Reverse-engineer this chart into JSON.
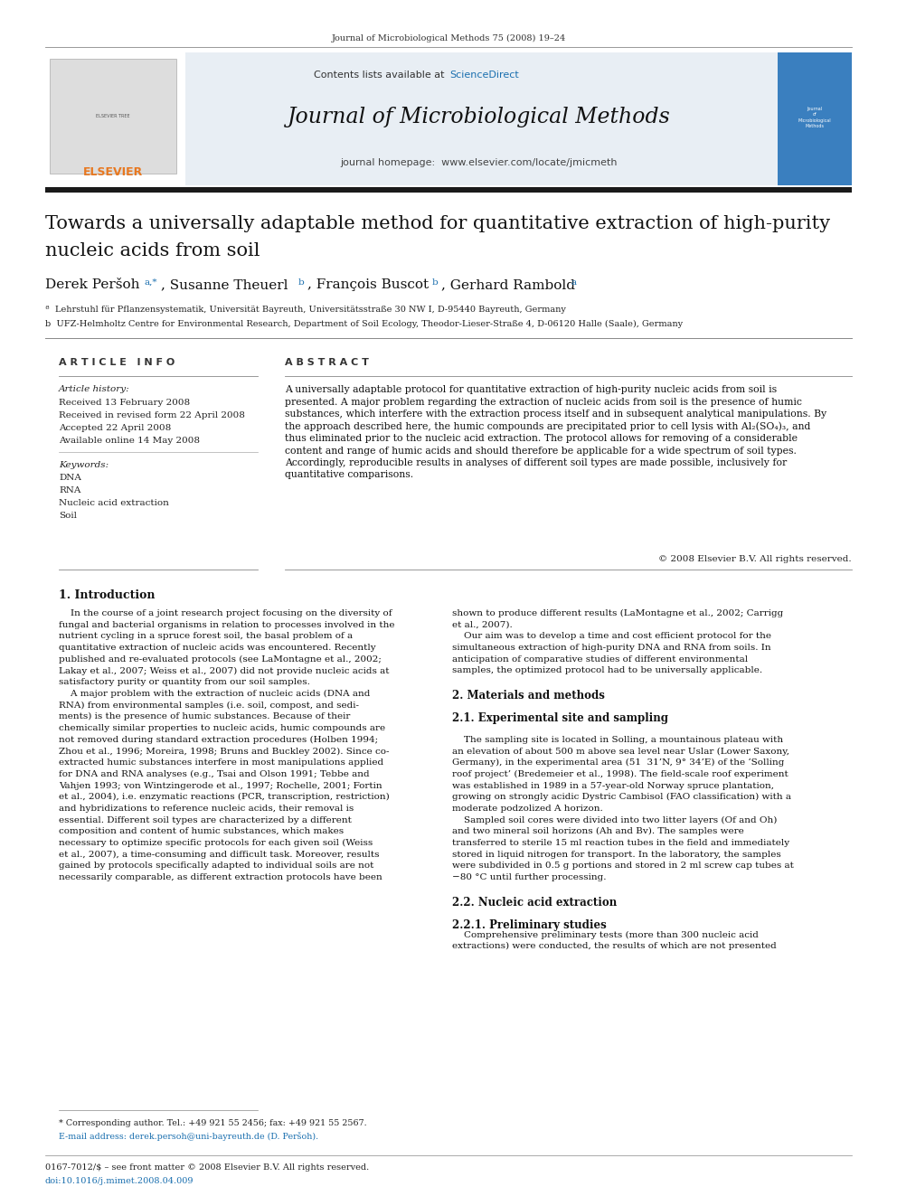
{
  "page_width": 9.92,
  "page_height": 13.23,
  "bg_color": "#ffffff",
  "top_journal_cite": "Journal of Microbiological Methods 75 (2008) 19–24",
  "header_bg": "#e8eef4",
  "contents_text": "Contents lists available at ",
  "sciencedirect_text": "ScienceDirect",
  "sciencedirect_color": "#1a6faf",
  "journal_title": "Journal of Microbiological Methods",
  "journal_homepage": "journal homepage:  www.elsevier.com/locate/jmicmeth",
  "thick_bar_color": "#1a1a1a",
  "article_title_line1": "Towards a universally adaptable method for quantitative extraction of high-purity",
  "article_title_line2": "nucleic acids from soil",
  "affil_a": "ª  Lehrstuhl für Pflanzensystematik, Universität Bayreuth, Universitätsstraße 30 NW I, D-95440 Bayreuth, Germany",
  "affil_b": "b  UFZ-Helmholtz Centre for Environmental Research, Department of Soil Ecology, Theodor-Lieser-Straße 4, D-06120 Halle (Saale), Germany",
  "article_info_header": "A R T I C L E   I N F O",
  "abstract_header": "A B S T R A C T",
  "article_history_label": "Article history:",
  "received": "Received 13 February 2008",
  "received_revised": "Received in revised form 22 April 2008",
  "accepted": "Accepted 22 April 2008",
  "available": "Available online 14 May 2008",
  "keywords_label": "Keywords:",
  "keywords": [
    "DNA",
    "RNA",
    "Nucleic acid extraction",
    "Soil"
  ],
  "abstract_lines": [
    "A universally adaptable protocol for quantitative extraction of high-purity nucleic acids from soil is",
    "presented. A major problem regarding the extraction of nucleic acids from soil is the presence of humic",
    "substances, which interfere with the extraction process itself and in subsequent analytical manipulations. By",
    "the approach described here, the humic compounds are precipitated prior to cell lysis with Al₂(SO₄)₃, and",
    "thus eliminated prior to the nucleic acid extraction. The protocol allows for removing of a considerable",
    "content and range of humic acids and should therefore be applicable for a wide spectrum of soil types.",
    "Accordingly, reproducible results in analyses of different soil types are made possible, inclusively for",
    "quantitative comparisons."
  ],
  "copyright": "© 2008 Elsevier B.V. All rights reserved.",
  "intro_header": "1. Introduction",
  "intro_col1_lines": [
    "    In the course of a joint research project focusing on the diversity of",
    "fungal and bacterial organisms in relation to processes involved in the",
    "nutrient cycling in a spruce forest soil, the basal problem of a",
    "quantitative extraction of nucleic acids was encountered. Recently",
    "published and re-evaluated protocols (see LaMontagne et al., 2002;",
    "Lakay et al., 2007; Weiss et al., 2007) did not provide nucleic acids at",
    "satisfactory purity or quantity from our soil samples.",
    "    A major problem with the extraction of nucleic acids (DNA and",
    "RNA) from environmental samples (i.e. soil, compost, and sedi-",
    "ments) is the presence of humic substances. Because of their",
    "chemically similar properties to nucleic acids, humic compounds are",
    "not removed during standard extraction procedures (Holben 1994;",
    "Zhou et al., 1996; Moreira, 1998; Bruns and Buckley 2002). Since co-",
    "extracted humic substances interfere in most manipulations applied",
    "for DNA and RNA analyses (e.g., Tsai and Olson 1991; Tebbe and",
    "Vahjen 1993; von Wintzingerode et al., 1997; Rochelle, 2001; Fortin",
    "et al., 2004), i.e. enzymatic reactions (PCR, transcription, restriction)",
    "and hybridizations to reference nucleic acids, their removal is",
    "essential. Different soil types are characterized by a different",
    "composition and content of humic substances, which makes",
    "necessary to optimize specific protocols for each given soil (Weiss",
    "et al., 2007), a time-consuming and difficult task. Moreover, results",
    "gained by protocols specifically adapted to individual soils are not",
    "necessarily comparable, as different extraction protocols have been"
  ],
  "intro_col2_lines": [
    "shown to produce different results (LaMontagne et al., 2002; Carrigg",
    "et al., 2007).",
    "    Our aim was to develop a time and cost efficient protocol for the",
    "simultaneous extraction of high-purity DNA and RNA from soils. In",
    "anticipation of comparative studies of different environmental",
    "samples, the optimized protocol had to be universally applicable.",
    "",
    "2. Materials and methods",
    "",
    "2.1. Experimental site and sampling",
    "",
    "    The sampling site is located in Solling, a mountainous plateau with",
    "an elevation of about 500 m above sea level near Uslar (Lower Saxony,",
    "Germany), in the experimental area (51  31’N, 9° 34’E) of the ‘Solling",
    "roof project’ (Bredemeier et al., 1998). The field-scale roof experiment",
    "was established in 1989 in a 57-year-old Norway spruce plantation,",
    "growing on strongly acidic Dystric Cambisol (FAO classification) with a",
    "moderate podzolized A horizon.",
    "    Sampled soil cores were divided into two litter layers (Of and Oh)",
    "and two mineral soil horizons (Ah and Bv). The samples were",
    "transferred to sterile 15 ml reaction tubes in the field and immediately",
    "stored in liquid nitrogen for transport. In the laboratory, the samples",
    "were subdivided in 0.5 g portions and stored in 2 ml screw cap tubes at",
    "−80 °C until further processing.",
    "",
    "2.2. Nucleic acid extraction",
    "",
    "2.2.1. Preliminary studies",
    "    Comprehensive preliminary tests (more than 300 nucleic acid",
    "extractions) were conducted, the results of which are not presented"
  ],
  "section_headers": [
    "2. Materials and methods",
    "2.1. Experimental site and sampling",
    "2.2. Nucleic acid extraction",
    "2.2.1. Preliminary studies"
  ],
  "footer_left": "0167-7012/$ – see front matter © 2008 Elsevier B.V. All rights reserved.",
  "footer_doi": "doi:10.1016/j.mimet.2008.04.009",
  "footnote_corresponding": "* Corresponding author. Tel.: +49 921 55 2456; fax: +49 921 55 2567.",
  "footnote_email": "E-mail address: derek.persoh@uni-bayreuth.de (D. Peršoh).",
  "link_color": "#1a6faf"
}
